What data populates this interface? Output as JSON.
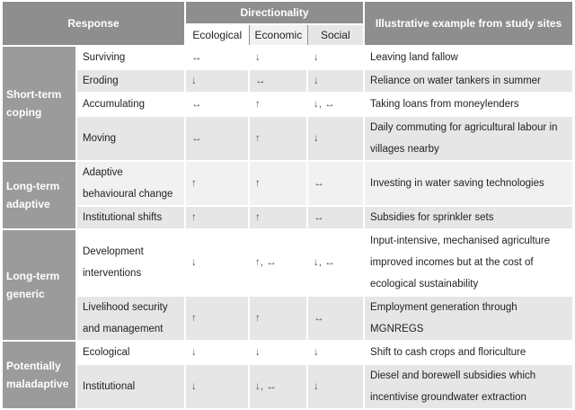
{
  "header": {
    "response": "Response",
    "directionality": "Directionality",
    "ecological": "Ecological",
    "economic": "Economic",
    "social": "Social",
    "example": "Illustrative example from study sites"
  },
  "groups": [
    {
      "label": "Short-term coping",
      "rows": [
        {
          "response": "Surviving",
          "ecological": "↔",
          "economic": "↓",
          "social": "↓",
          "example": "Leaving land fallow"
        },
        {
          "response": "Eroding",
          "ecological": "↓",
          "economic": "↔",
          "social": "↓",
          "example": "Reliance on water tankers in summer"
        },
        {
          "response": "Accumulating",
          "ecological": "↔",
          "economic": "↑",
          "social": "↓, ↔",
          "example": "Taking loans from moneylenders"
        },
        {
          "response": "Moving",
          "ecological": "↔",
          "economic": "↑",
          "social": "↓",
          "example": "Daily commuting for agricultural labour in villages nearby"
        }
      ]
    },
    {
      "label": "Long-term adaptive",
      "rows": [
        {
          "response": "Adaptive behavioural change",
          "ecological": "↑",
          "economic": "↑",
          "social": "↔",
          "example": "Investing in water saving technologies"
        },
        {
          "response": "Institutional shifts",
          "ecological": "↑",
          "economic": "↑",
          "social": "↔",
          "example": "Subsidies for sprinkler sets"
        }
      ]
    },
    {
      "label": "Long-term generic",
      "rows": [
        {
          "response": "Development interventions",
          "ecological": "↓",
          "economic": "↑, ↔",
          "social": "↓, ↔",
          "example": "Input-intensive, mechanised agriculture improved incomes but at the cost of ecological sustainability"
        },
        {
          "response": "Livelihood security and management",
          "ecological": "↑",
          "economic": "↑",
          "social": "↔",
          "example": "Employment generation through MGNREGS"
        }
      ]
    },
    {
      "label": "Potentially maladaptive",
      "rows": [
        {
          "response": "Ecological",
          "ecological": "↓",
          "economic": "↓",
          "social": "↓",
          "example": "Shift to cash crops and floriculture"
        },
        {
          "response": "Institutional",
          "ecological": "↓",
          "economic": "↓, ↔",
          "social": "↓",
          "example": "Diesel and borewell subsidies which incentivise groundwater extraction"
        }
      ]
    }
  ]
}
